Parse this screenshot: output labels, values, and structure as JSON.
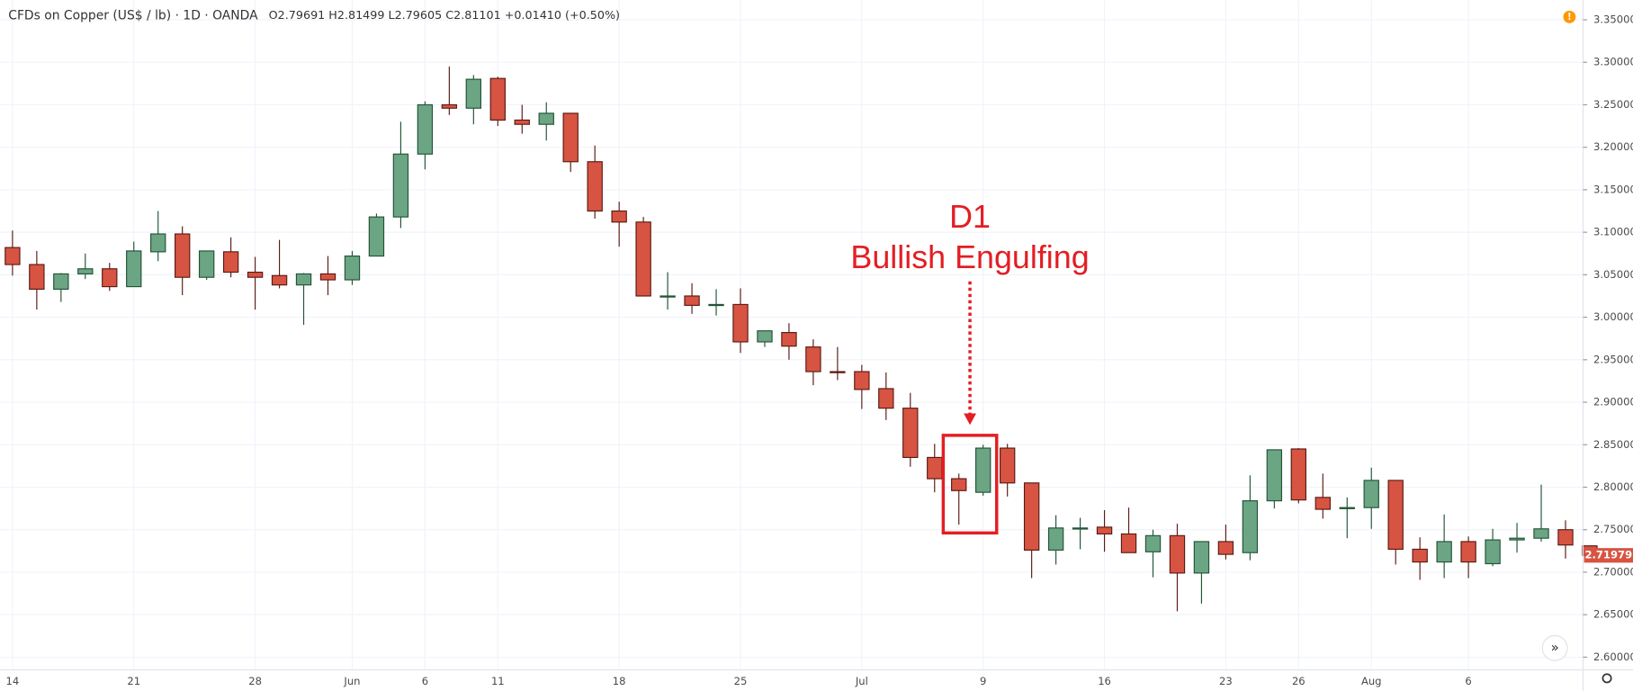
{
  "chart_data": {
    "type": "candlestick",
    "title": "CFDs on Copper (US$ / lb) · 1D · OANDA",
    "legend_values": "O2.79691 H2.81499 L2.79605 C2.81101 +0.01410 (+0.50%)",
    "annotation": [
      "D1",
      "Bullish Engulfing"
    ],
    "last_price_label": "2.71979",
    "up_color": "#6ba583",
    "up_border": "#225437",
    "down_color": "#d75442",
    "down_border": "#5b1a13",
    "categories": [
      "14",
      null,
      null,
      null,
      null,
      "21",
      null,
      null,
      null,
      null,
      "28",
      null,
      null,
      null,
      "Jun",
      null,
      null,
      "6",
      null,
      null,
      "11",
      null,
      null,
      null,
      null,
      "18",
      null,
      null,
      null,
      null,
      "25",
      null,
      null,
      null,
      null,
      "Jul",
      null,
      null,
      null,
      null,
      "9",
      null,
      null,
      null,
      null,
      "16",
      null,
      null,
      null,
      null,
      "23",
      null,
      null,
      "26",
      null,
      null,
      "Aug",
      null,
      null,
      null,
      "6",
      null,
      null,
      null,
      null,
      null
    ],
    "open": [
      3.082,
      3.062,
      3.033,
      3.051,
      3.057,
      3.036,
      3.077,
      3.098,
      3.047,
      3.077,
      3.053,
      3.049,
      3.038,
      3.051,
      3.044,
      3.072,
      3.118,
      3.192,
      3.25,
      3.246,
      3.281,
      3.232,
      3.227,
      3.24,
      3.183,
      3.125,
      3.112,
      3.025,
      3.025,
      3.015,
      3.015,
      2.971,
      2.982,
      2.965,
      2.936,
      2.936,
      2.916,
      2.893,
      2.835,
      2.81,
      2.794,
      2.846,
      2.805,
      2.726,
      2.752,
      2.753,
      2.745,
      2.724,
      2.743,
      2.699,
      2.736,
      2.723,
      2.784,
      2.845,
      2.788,
      2.775,
      2.776,
      2.808,
      2.727,
      2.712,
      2.736,
      2.71,
      2.738,
      2.74,
      2.75,
      2.731
    ],
    "high": [
      3.102,
      3.078,
      3.052,
      3.075,
      3.064,
      3.089,
      3.125,
      3.107,
      3.078,
      3.094,
      3.071,
      3.091,
      3.052,
      3.072,
      3.078,
      3.122,
      3.23,
      3.254,
      3.295,
      3.285,
      3.283,
      3.25,
      3.253,
      3.24,
      3.202,
      3.136,
      3.118,
      3.053,
      3.04,
      3.033,
      3.034,
      2.984,
      2.993,
      2.974,
      2.965,
      2.944,
      2.935,
      2.911,
      2.851,
      2.816,
      2.85,
      2.851,
      2.805,
      2.767,
      2.764,
      2.773,
      2.776,
      2.75,
      2.757,
      2.736,
      2.756,
      2.814,
      2.844,
      2.846,
      2.816,
      2.788,
      2.823,
      2.808,
      2.741,
      2.768,
      2.742,
      2.751,
      2.758,
      2.803,
      2.761,
      2.731
    ],
    "low": [
      3.049,
      3.009,
      3.018,
      3.045,
      3.031,
      3.036,
      3.066,
      3.026,
      3.044,
      3.047,
      3.009,
      3.034,
      2.991,
      3.026,
      3.038,
      3.072,
      3.105,
      3.174,
      3.238,
      3.227,
      3.225,
      3.216,
      3.208,
      3.171,
      3.116,
      3.083,
      3.025,
      3.009,
      3.004,
      3.002,
      2.958,
      2.965,
      2.95,
      2.92,
      2.926,
      2.892,
      2.879,
      2.824,
      2.794,
      2.756,
      2.79,
      2.789,
      2.693,
      2.709,
      2.727,
      2.724,
      2.723,
      2.694,
      2.654,
      2.663,
      2.715,
      2.714,
      2.775,
      2.781,
      2.763,
      2.74,
      2.751,
      2.709,
      2.691,
      2.693,
      2.693,
      2.707,
      2.723,
      2.736,
      2.716,
      2.71979
    ],
    "close": [
      3.062,
      3.033,
      3.051,
      3.057,
      3.036,
      3.078,
      3.098,
      3.047,
      3.078,
      3.053,
      3.047,
      3.038,
      3.051,
      3.044,
      3.072,
      3.118,
      3.192,
      3.25,
      3.246,
      3.28,
      3.232,
      3.227,
      3.24,
      3.183,
      3.125,
      3.112,
      3.025,
      3.025,
      3.014,
      3.015,
      2.971,
      2.984,
      2.966,
      2.936,
      2.935,
      2.915,
      2.893,
      2.835,
      2.81,
      2.796,
      2.846,
      2.805,
      2.726,
      2.752,
      2.752,
      2.745,
      2.723,
      2.743,
      2.699,
      2.736,
      2.721,
      2.784,
      2.844,
      2.785,
      2.774,
      2.776,
      2.808,
      2.727,
      2.712,
      2.736,
      2.712,
      2.738,
      2.74,
      2.751,
      2.732,
      2.71979
    ],
    "ylim": [
      2.585,
      3.373
    ],
    "yticks": [
      {
        "value": 2.6,
        "label": "2.60000"
      },
      {
        "value": 2.65,
        "label": "2.65000"
      },
      {
        "value": 2.7,
        "label": "2.70000"
      },
      {
        "value": 2.75,
        "label": "2.75000"
      },
      {
        "value": 2.8,
        "label": "2.80000"
      },
      {
        "value": 2.85,
        "label": "2.85000"
      },
      {
        "value": 2.9,
        "label": "2.90000"
      },
      {
        "value": 2.95,
        "label": "2.95000"
      },
      {
        "value": 3.0,
        "label": "3.00000"
      },
      {
        "value": 3.05,
        "label": "3.05000"
      },
      {
        "value": 3.1,
        "label": "3.10000"
      },
      {
        "value": 3.15,
        "label": "3.15000"
      },
      {
        "value": 3.2,
        "label": "3.20000"
      },
      {
        "value": 3.25,
        "label": "3.25000"
      },
      {
        "value": 3.3,
        "label": "3.30000"
      },
      {
        "value": 3.35,
        "label": "3.35000"
      }
    ],
    "grid": true
  }
}
